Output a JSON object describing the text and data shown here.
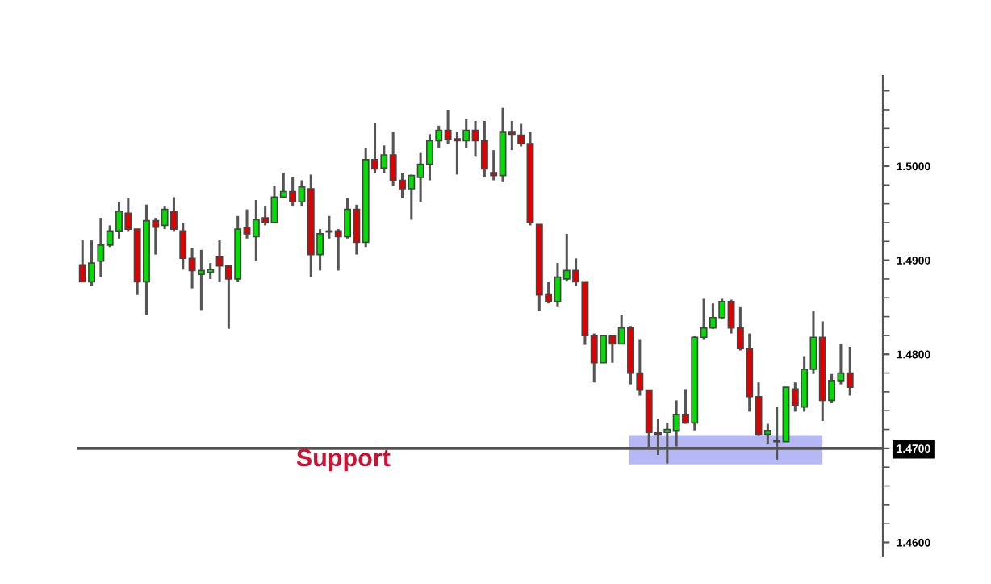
{
  "chart_data": {
    "type": "candlestick",
    "categories": [
      null,
      null,
      null,
      null,
      null,
      null,
      null,
      null,
      null,
      null,
      null,
      null,
      null,
      null,
      null,
      null,
      null,
      null,
      null,
      null,
      null,
      null,
      null,
      null,
      null,
      null,
      null,
      null,
      null,
      null,
      null,
      null,
      null,
      null,
      null,
      null,
      null,
      null,
      null,
      null,
      null,
      null,
      null,
      null,
      null,
      null,
      null,
      null,
      null,
      null,
      null,
      null,
      null,
      null,
      null,
      null,
      null,
      null,
      null,
      null,
      null,
      null,
      null,
      null,
      null,
      null,
      null,
      null,
      null,
      null,
      null,
      null,
      null,
      null,
      null,
      null,
      null,
      null,
      null,
      null,
      null,
      null,
      null,
      null,
      null
    ],
    "ohlc": [
      [
        1.4895,
        1.4921,
        1.4877,
        1.4877
      ],
      [
        1.4877,
        1.4921,
        1.4873,
        1.4897
      ],
      [
        1.4899,
        1.4945,
        1.4882,
        1.4916
      ],
      [
        1.4916,
        1.4937,
        1.4914,
        1.4931
      ],
      [
        1.4931,
        1.4962,
        1.4923,
        1.4952
      ],
      [
        1.495,
        1.4966,
        1.4931,
        1.4933
      ],
      [
        1.4933,
        1.4933,
        1.4863,
        1.4877
      ],
      [
        1.4877,
        1.4959,
        1.4842,
        1.4942
      ],
      [
        1.4942,
        1.4945,
        1.4906,
        1.4935
      ],
      [
        1.4937,
        1.4957,
        1.4933,
        1.4954
      ],
      [
        1.4952,
        1.4967,
        1.4931,
        1.4933
      ],
      [
        1.4931,
        1.494,
        1.489,
        1.4902
      ],
      [
        1.4902,
        1.4913,
        1.487,
        1.4889
      ],
      [
        1.4885,
        1.4911,
        1.4847,
        1.4889
      ],
      [
        1.4887,
        1.4897,
        1.488,
        1.489
      ],
      [
        1.4904,
        1.4921,
        1.4877,
        1.4894
      ],
      [
        1.4894,
        1.4894,
        1.4827,
        1.488
      ],
      [
        1.488,
        1.4947,
        1.4877,
        1.4933
      ],
      [
        1.4935,
        1.4954,
        1.4923,
        1.4928
      ],
      [
        1.4925,
        1.4964,
        1.4899,
        1.4943
      ],
      [
        1.4945,
        1.4957,
        1.4937,
        1.494
      ],
      [
        1.494,
        1.4979,
        1.494,
        1.4967
      ],
      [
        1.4967,
        1.4993,
        1.4966,
        1.4973
      ],
      [
        1.4973,
        1.4988,
        1.4957,
        1.4962
      ],
      [
        1.4962,
        1.4985,
        1.4957,
        1.4978
      ],
      [
        1.4976,
        1.4991,
        1.4882,
        1.4906
      ],
      [
        1.4906,
        1.4933,
        1.4889,
        1.4928
      ],
      [
        1.4931,
        1.4947,
        1.4923,
        1.493
      ],
      [
        1.4931,
        1.4933,
        1.4889,
        1.4925
      ],
      [
        1.4925,
        1.4966,
        1.4923,
        1.4954
      ],
      [
        1.4954,
        1.4959,
        1.4906,
        1.4919
      ],
      [
        1.4919,
        1.5019,
        1.4914,
        1.5007
      ],
      [
        1.5007,
        1.5046,
        1.4993,
        1.4997
      ],
      [
        1.4998,
        1.5022,
        1.4993,
        1.5012
      ],
      [
        1.5012,
        1.5036,
        1.4979,
        1.4985
      ],
      [
        1.4985,
        1.4993,
        1.4966,
        1.4976
      ],
      [
        1.4976,
        1.4991,
        1.4943,
        1.499
      ],
      [
        1.4988,
        1.5014,
        1.4962,
        1.5002
      ],
      [
        1.5002,
        1.5034,
        1.4985,
        1.5027
      ],
      [
        1.5027,
        1.5043,
        1.5019,
        1.5038
      ],
      [
        1.5038,
        1.506,
        1.5024,
        1.5029
      ],
      [
        1.5029,
        1.5036,
        1.4991,
        1.5027
      ],
      [
        1.5027,
        1.505,
        1.5019,
        1.5038
      ],
      [
        1.5038,
        1.5048,
        1.501,
        1.5027
      ],
      [
        1.5027,
        1.5048,
        1.4988,
        1.4997
      ],
      [
        1.4993,
        1.5017,
        1.4985,
        1.499
      ],
      [
        1.499,
        1.5062,
        1.4983,
        1.5036
      ],
      [
        1.5036,
        1.5048,
        1.5017,
        1.5034
      ],
      [
        1.5033,
        1.5045,
        1.5021,
        1.5024
      ],
      [
        1.5024,
        1.5036,
        1.4937,
        1.494
      ],
      [
        1.4938,
        1.4938,
        1.4846,
        1.4863
      ],
      [
        1.4864,
        1.4877,
        1.4854,
        1.4856
      ],
      [
        1.4856,
        1.4897,
        1.4851,
        1.4882
      ],
      [
        1.488,
        1.4928,
        1.4878,
        1.4889
      ],
      [
        1.4889,
        1.4902,
        1.4873,
        1.4877
      ],
      [
        1.4877,
        1.4877,
        1.481,
        1.482
      ],
      [
        1.482,
        1.4822,
        1.477,
        1.4791
      ],
      [
        1.4791,
        1.482,
        1.4791,
        1.482
      ],
      [
        1.482,
        1.482,
        1.4791,
        1.4811
      ],
      [
        1.4811,
        1.4842,
        1.4811,
        1.4828
      ],
      [
        1.4828,
        1.483,
        1.4768,
        1.478
      ],
      [
        1.478,
        1.4816,
        1.4756,
        1.4762
      ],
      [
        1.4762,
        1.4762,
        1.47,
        1.4717
      ],
      [
        1.4717,
        1.4731,
        1.4693,
        1.4715
      ],
      [
        1.4717,
        1.4727,
        1.4684,
        1.472
      ],
      [
        1.4719,
        1.4751,
        1.4702,
        1.4736
      ],
      [
        1.4736,
        1.4763,
        1.4726,
        1.4727
      ],
      [
        1.4727,
        1.482,
        1.4719,
        1.4818
      ],
      [
        1.4818,
        1.4859,
        1.4816,
        1.4828
      ],
      [
        1.4828,
        1.4854,
        1.4827,
        1.4839
      ],
      [
        1.4839,
        1.4859,
        1.4837,
        1.4856
      ],
      [
        1.4856,
        1.4858,
        1.4822,
        1.4828
      ],
      [
        1.4828,
        1.4851,
        1.4804,
        1.4806
      ],
      [
        1.4806,
        1.4822,
        1.4739,
        1.4755
      ],
      [
        1.4755,
        1.477,
        1.4714,
        1.4715
      ],
      [
        1.4715,
        1.4726,
        1.4705,
        1.4719
      ],
      [
        1.4708,
        1.4744,
        1.4688,
        1.4707
      ],
      [
        1.4707,
        1.4765,
        1.4707,
        1.4765
      ],
      [
        1.4763,
        1.477,
        1.4739,
        1.4746
      ],
      [
        1.4744,
        1.4798,
        1.4739,
        1.4784
      ],
      [
        1.4784,
        1.4846,
        1.4779,
        1.4818
      ],
      [
        1.4818,
        1.4835,
        1.4729,
        1.4751
      ],
      [
        1.4751,
        1.4779,
        1.4748,
        1.4772
      ],
      [
        1.4772,
        1.4811,
        1.4768,
        1.478
      ],
      [
        1.478,
        1.4808,
        1.4756,
        1.4765
      ]
    ],
    "colors": [
      "#e00000",
      "#00e000",
      "#00e000",
      "#00e000",
      "#00e000",
      "#e00000",
      "#e00000",
      "#00e000",
      "#e00000",
      "#00e000",
      "#e00000",
      "#e00000",
      "#e00000",
      "#00e000",
      "#00e000",
      "#e00000",
      "#e00000",
      "#00e000",
      "#e00000",
      "#00e000",
      "#e00000",
      "#00e000",
      "#00e000",
      "#e00000",
      "#00e000",
      "#e00000",
      "#00e000",
      "#e00000",
      "#e00000",
      "#00e000",
      "#e00000",
      "#00e000",
      "#e00000",
      "#00e000",
      "#e00000",
      "#e00000",
      "#00e000",
      "#00e000",
      "#00e000",
      "#00e000",
      "#e00000",
      "#e00000",
      "#00e000",
      "#e00000",
      "#e00000",
      "#e00000",
      "#00e000",
      "#e00000",
      "#e00000",
      "#e00000",
      "#e00000",
      "#e00000",
      "#00e000",
      "#00e000",
      "#e00000",
      "#e00000",
      "#e00000",
      "#00e000",
      "#e00000",
      "#00e000",
      "#e00000",
      "#e00000",
      "#e00000",
      "#e00000",
      "#00e000",
      "#00e000",
      "#e00000",
      "#00e000",
      "#00e000",
      "#00e000",
      "#00e000",
      "#e00000",
      "#e00000",
      "#e00000",
      "#e00000",
      "#00e000",
      "#e00000",
      "#00e000",
      "#e00000",
      "#00e000",
      "#00e000",
      "#e00000",
      "#00e000",
      "#00e000",
      "#e00000"
    ],
    "ylim": [
      1.4585,
      1.5096
    ],
    "yticks": [
      {
        "value": 1.46,
        "label": "1.4600"
      },
      {
        "value": 1.47,
        "label": "1.4700"
      },
      {
        "value": 1.48,
        "label": "1.4800"
      },
      {
        "value": 1.49,
        "label": "1.4900"
      },
      {
        "value": 1.5,
        "label": "1.5000"
      }
    ],
    "tick_labels": "y",
    "grid": false,
    "ref_lines": [
      {
        "axis": "y",
        "value": 1.47,
        "label": "Support",
        "color": "#555555"
      }
    ],
    "bands": [
      {
        "axis": "y",
        "from": 1.4683,
        "to": 1.4714,
        "color": "#a9acf5"
      }
    ]
  }
}
